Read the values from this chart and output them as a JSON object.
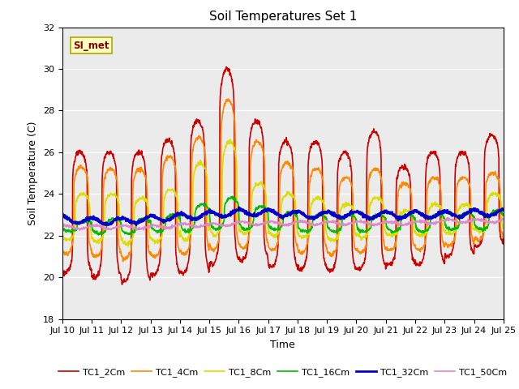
{
  "title": "Soil Temperatures Set 1",
  "xlabel": "Time",
  "ylabel": "Soil Temperature (C)",
  "ylim": [
    18,
    32
  ],
  "yticks": [
    18,
    20,
    22,
    24,
    26,
    28,
    30,
    32
  ],
  "annotation_text": "SI_met",
  "bg_color": "#ebebeb",
  "series": [
    {
      "label": "TC1_2Cm",
      "color": "#cc0000",
      "lw": 1.2
    },
    {
      "label": "TC1_4Cm",
      "color": "#ff8800",
      "lw": 1.2
    },
    {
      "label": "TC1_8Cm",
      "color": "#dddd00",
      "lw": 1.2
    },
    {
      "label": "TC1_16Cm",
      "color": "#00bb00",
      "lw": 1.2
    },
    {
      "label": "TC1_32Cm",
      "color": "#0000cc",
      "lw": 2.0
    },
    {
      "label": "TC1_50Cm",
      "color": "#dd88cc",
      "lw": 1.2
    }
  ],
  "xtick_labels": [
    "Jul 10",
    "Jul 11",
    "Jul 12",
    "Jul 13",
    "Jul 14",
    "Jul 15",
    "Jul 16",
    "Jul 17",
    "Jul 18",
    "Jul 19",
    "Jul 20",
    "Jul 21",
    "Jul 22",
    "Jul 23",
    "Jul 24",
    "Jul 25"
  ],
  "n_points": 1440,
  "days": 15
}
